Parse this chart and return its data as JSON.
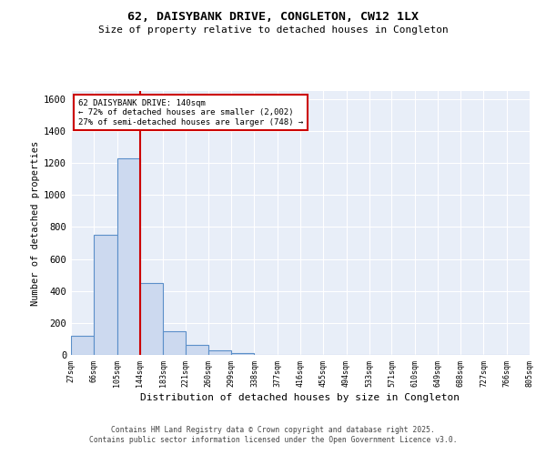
{
  "title": "62, DAISYBANK DRIVE, CONGLETON, CW12 1LX",
  "subtitle": "Size of property relative to detached houses in Congleton",
  "xlabel": "Distribution of detached houses by size in Congleton",
  "ylabel": "Number of detached properties",
  "bar_edges": [
    27,
    66,
    105,
    144,
    183,
    221,
    260,
    299,
    338,
    377,
    416,
    455,
    494,
    533,
    571,
    610,
    649,
    688,
    727,
    766,
    805
  ],
  "bar_heights": [
    120,
    750,
    1230,
    450,
    150,
    60,
    30,
    10,
    0,
    0,
    0,
    0,
    0,
    0,
    0,
    0,
    0,
    0,
    0,
    0
  ],
  "bar_color": "#ccd9ef",
  "bar_edge_color": "#5b8fc9",
  "red_line_x": 144,
  "annotation_text": "62 DAISYBANK DRIVE: 140sqm\n← 72% of detached houses are smaller (2,002)\n27% of semi-detached houses are larger (748) →",
  "annotation_box_color": "white",
  "annotation_box_edge": "#cc0000",
  "ylim": [
    0,
    1650
  ],
  "yticks": [
    0,
    200,
    400,
    600,
    800,
    1000,
    1200,
    1400,
    1600
  ],
  "bg_color": "#e8eef8",
  "grid_color": "#ffffff",
  "footer_line1": "Contains HM Land Registry data © Crown copyright and database right 2025.",
  "footer_line2": "Contains public sector information licensed under the Open Government Licence v3.0."
}
